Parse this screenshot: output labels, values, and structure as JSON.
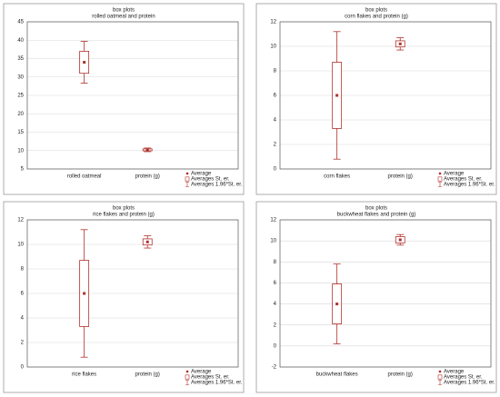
{
  "chart_data": [
    {
      "type": "box",
      "title": "box plots",
      "subtitle": "rolled oatmeal and protein",
      "categories": [
        "rolled oatmeal",
        "protein (g)"
      ],
      "mean": [
        34,
        10.2
      ],
      "se_low": [
        31,
        9.95
      ],
      "se_high": [
        37,
        10.45
      ],
      "ci_low": [
        28.3,
        9.7
      ],
      "ci_high": [
        39.7,
        10.7
      ],
      "ylim": [
        5,
        45
      ],
      "yticks": [
        5,
        10,
        15,
        20,
        25,
        30,
        35,
        40,
        45
      ],
      "grid": true,
      "color": "#b0302c",
      "legend": [
        "Average",
        "Averages St. er.",
        "Averages 1.96*St. er."
      ]
    },
    {
      "type": "box",
      "title": "box plots",
      "subtitle": "corn flakes  and protein (g)",
      "categories": [
        "corn flakes",
        "protein (g)"
      ],
      "mean": [
        6,
        10.2
      ],
      "se_low": [
        3.3,
        9.95
      ],
      "se_high": [
        8.7,
        10.45
      ],
      "ci_low": [
        0.8,
        9.7
      ],
      "ci_high": [
        11.2,
        10.7
      ],
      "ylim": [
        0,
        12
      ],
      "yticks": [
        0,
        2,
        4,
        6,
        8,
        10,
        12
      ],
      "grid": true,
      "color": "#b0302c",
      "legend": [
        "Average",
        "Averages St. er.",
        "Averages 1.96*St. er."
      ]
    },
    {
      "type": "box",
      "title": "box plots",
      "subtitle": "rice flakes  and protein (g)",
      "categories": [
        "rice flakes",
        "protein (g)"
      ],
      "mean": [
        6,
        10.2
      ],
      "se_low": [
        3.3,
        9.95
      ],
      "se_high": [
        8.7,
        10.45
      ],
      "ci_low": [
        0.8,
        9.7
      ],
      "ci_high": [
        11.2,
        10.7
      ],
      "ylim": [
        0,
        12
      ],
      "yticks": [
        0,
        2,
        4,
        6,
        8,
        10,
        12
      ],
      "grid": true,
      "color": "#b0302c",
      "legend": [
        "Average",
        "Averages St. er.",
        "Averages 1.96*St. er."
      ]
    },
    {
      "type": "box",
      "title": "box plots",
      "subtitle": "buckwheat flakes  and protein (g)",
      "categories": [
        "buckwheat flakes",
        "protein (g)"
      ],
      "mean": [
        4,
        10.1
      ],
      "se_low": [
        2.1,
        9.8
      ],
      "se_high": [
        5.9,
        10.4
      ],
      "ci_low": [
        0.2,
        9.6
      ],
      "ci_high": [
        7.8,
        10.6
      ],
      "ylim": [
        -2,
        12
      ],
      "yticks": [
        -2,
        0,
        2,
        4,
        6,
        8,
        10,
        12
      ],
      "grid": true,
      "color": "#b0302c",
      "legend": [
        "Average",
        "Averages St. er.",
        "Averages 1.96*St. er."
      ]
    }
  ]
}
